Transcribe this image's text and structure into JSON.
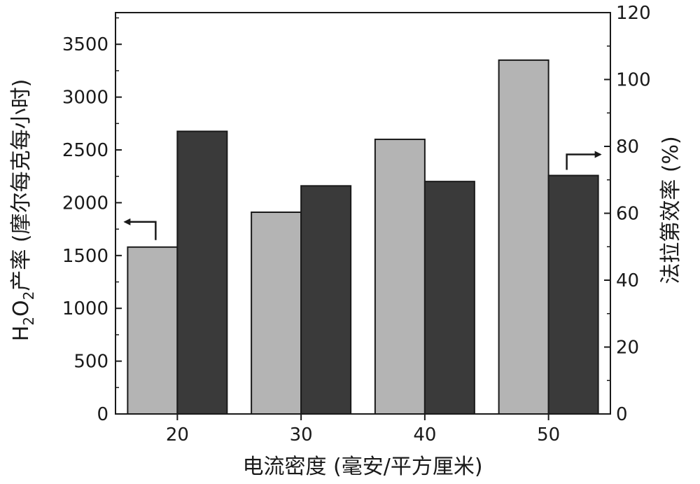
{
  "chart_data": {
    "type": "bar",
    "title": "",
    "categories": [
      "20",
      "30",
      "40",
      "50"
    ],
    "xlabel": "电流密度 (毫安/平方厘米)",
    "ylabel_left": {
      "pre": "H",
      "sub1": "2",
      "mid": "O",
      "sub2": "2",
      "post": "产率 (摩尔每克每小时)"
    },
    "ylabel_right": "法拉第效率 (%)",
    "y_left_lim": [
      0,
      3800
    ],
    "y_left_ticks": [
      0,
      500,
      1000,
      1500,
      2000,
      2500,
      3000,
      3500
    ],
    "y_right_lim": [
      0,
      120
    ],
    "y_right_ticks": [
      0,
      20,
      40,
      60,
      80,
      100,
      120
    ],
    "series": [
      {
        "axis": "left",
        "color": "#b4b4b4",
        "values": [
          1580,
          1910,
          2600,
          3350
        ]
      },
      {
        "axis": "right",
        "color": "#3a3a3a",
        "values": [
          84.5,
          68.2,
          69.5,
          71.3
        ]
      }
    ],
    "grid": false,
    "annotations": [
      {
        "arrow": "left",
        "points_to": "left-axis",
        "near_category": "20"
      },
      {
        "arrow": "right",
        "points_to": "right-axis",
        "near_category": "50"
      }
    ]
  }
}
